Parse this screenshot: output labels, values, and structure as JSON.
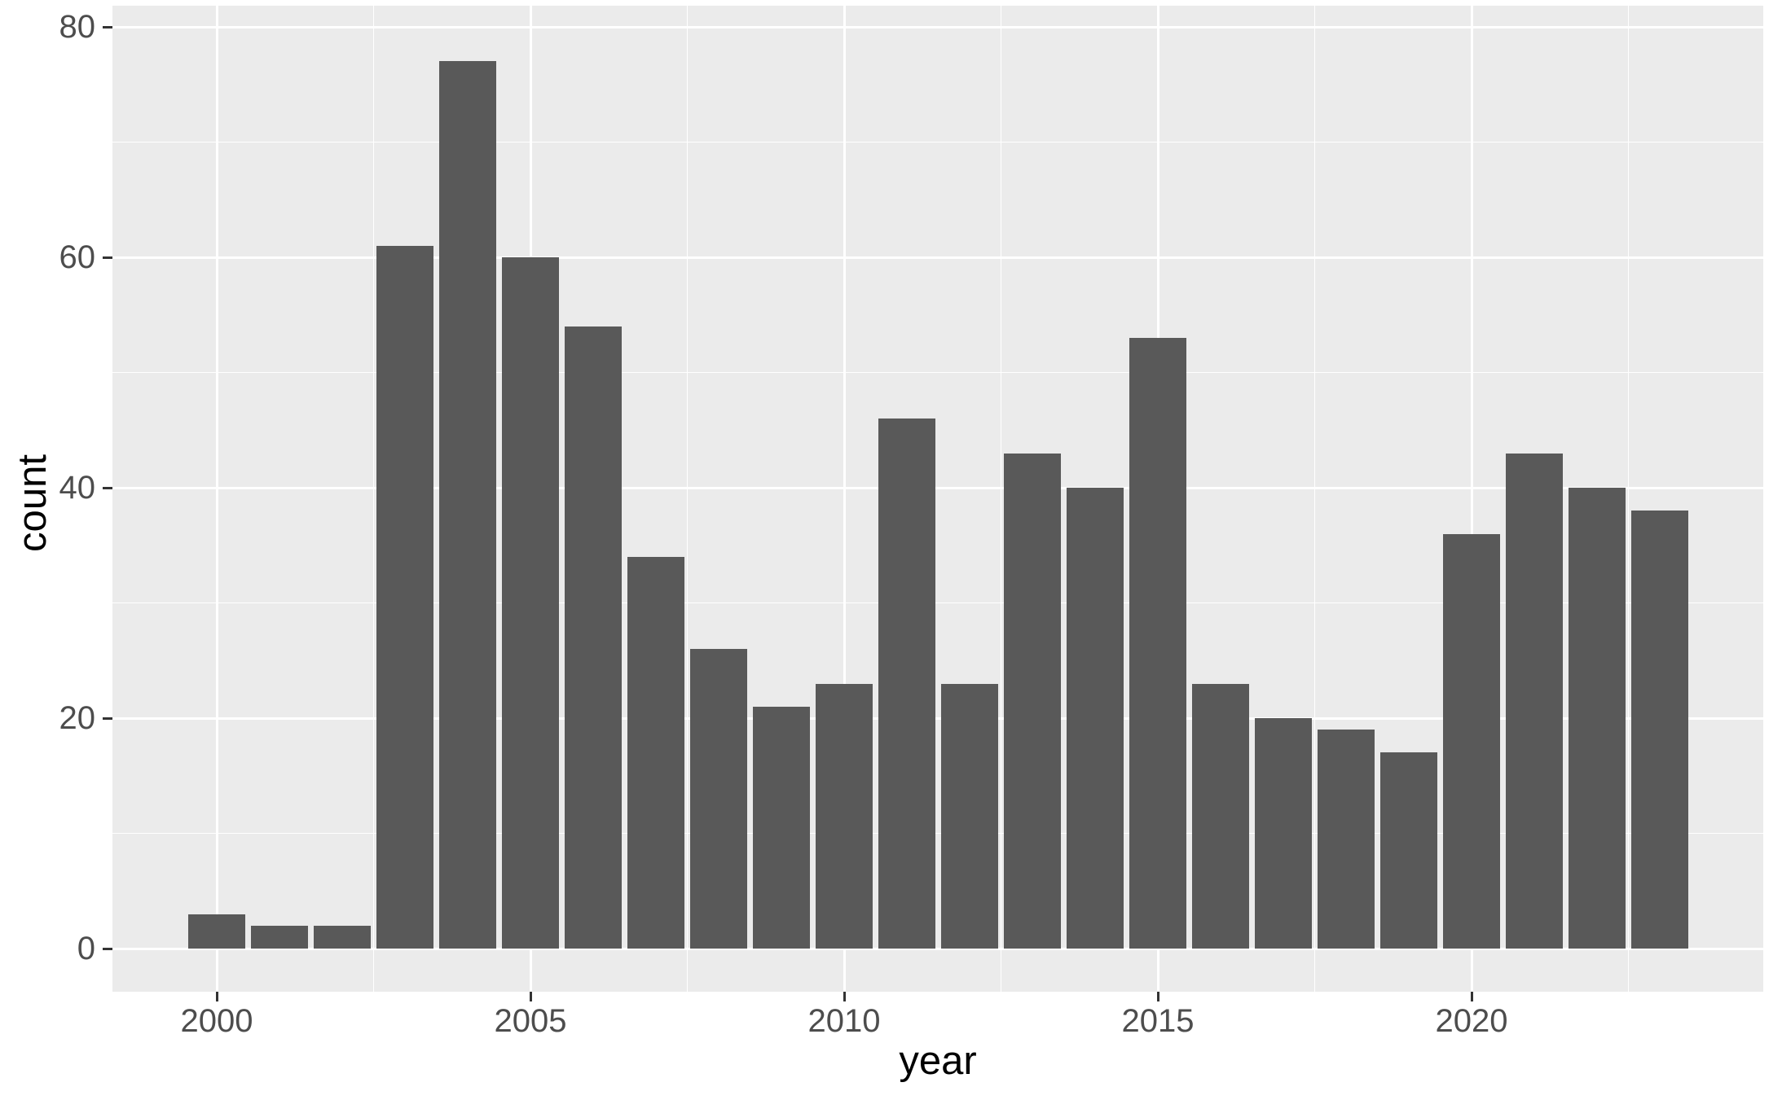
{
  "chart_data": {
    "type": "bar",
    "title": "",
    "xlabel": "year",
    "ylabel": "count",
    "categories": [
      2000,
      2001,
      2002,
      2003,
      2004,
      2005,
      2006,
      2007,
      2008,
      2009,
      2010,
      2011,
      2012,
      2013,
      2014,
      2015,
      2016,
      2017,
      2018,
      2019,
      2020,
      2021,
      2022,
      2023
    ],
    "values": [
      3,
      2,
      2,
      61,
      77,
      60,
      54,
      34,
      26,
      21,
      23,
      46,
      23,
      43,
      40,
      53,
      23,
      20,
      19,
      17,
      36,
      43,
      40,
      38
    ],
    "x_tick_labels": [
      "2000",
      "2005",
      "2010",
      "2015",
      "2020"
    ],
    "x_tick_years": [
      2000,
      2005,
      2010,
      2015,
      2020
    ],
    "x_minor_gridline_years": [
      2002.5,
      2007.5,
      2012.5,
      2017.5,
      2022.5
    ],
    "y_tick_labels": [
      "0",
      "20",
      "40",
      "60",
      "80"
    ],
    "y_tick_values": [
      0,
      20,
      40,
      60,
      80
    ],
    "y_minor_gridline_values": [
      10,
      30,
      50,
      70
    ],
    "ylim": [
      -3.85,
      81.8
    ],
    "grid": true,
    "legend": "none",
    "colors": {
      "bar_fill": "#595959",
      "panel_background": "#EBEBEB",
      "gridline": "#FFFFFF",
      "axis_text": "#4D4D4D",
      "axis_title": "#000000",
      "tick_mark": "#333333",
      "figure_background": "#FFFFFF"
    }
  }
}
